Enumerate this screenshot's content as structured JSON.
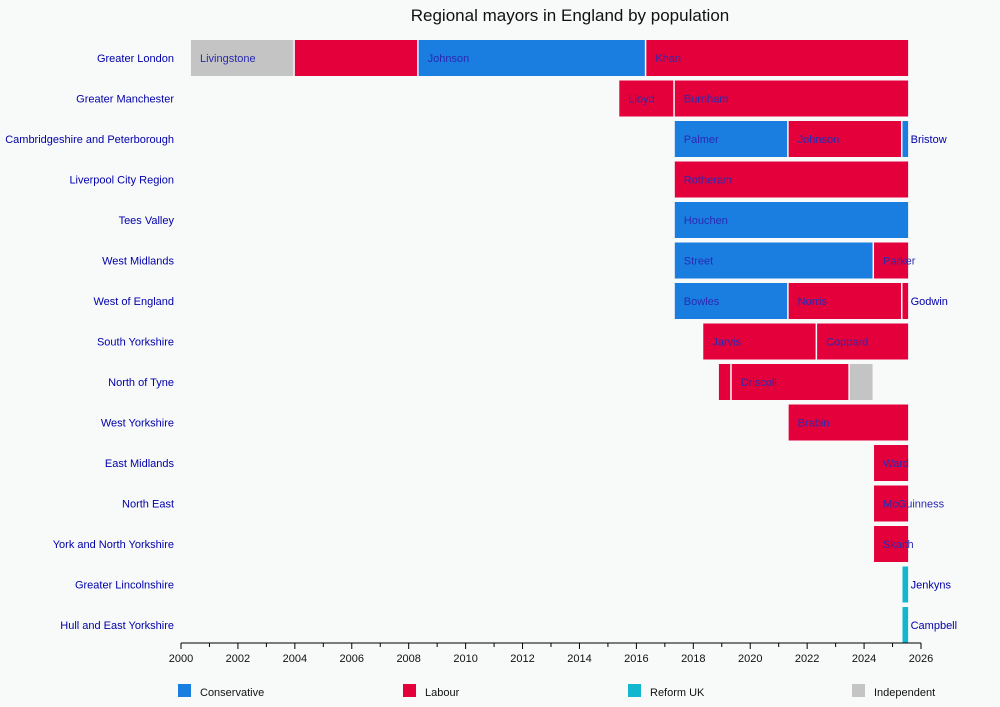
{
  "chart_data": {
    "type": "bar",
    "subtype": "timeline",
    "title": "Regional mayors in England by population",
    "xlim": [
      2000,
      2026
    ],
    "x_ticks": [
      2000,
      2002,
      2004,
      2006,
      2008,
      2010,
      2012,
      2014,
      2016,
      2018,
      2020,
      2022,
      2024,
      2026
    ],
    "grid": false,
    "legend_placement": "bottom",
    "parties": [
      {
        "name": "Conservative",
        "color": "#1a7ee0"
      },
      {
        "name": "Labour",
        "color": "#e4003b"
      },
      {
        "name": "Reform UK",
        "color": "#12b6cf"
      },
      {
        "name": "Independent",
        "color": "#c4c4c4"
      }
    ],
    "rows": [
      {
        "region": "Greater London",
        "terms": [
          {
            "label": "Livingstone",
            "party": "Independent",
            "start": 2000.35,
            "end": 2004.0
          },
          {
            "label": "",
            "party": "Labour",
            "start": 2004.0,
            "end": 2008.35
          },
          {
            "label": "Johnson",
            "party": "Conservative",
            "start": 2008.35,
            "end": 2016.35
          },
          {
            "label": "Khan",
            "party": "Labour",
            "start": 2016.35,
            "end": 2025.6
          }
        ]
      },
      {
        "region": "Greater Manchester",
        "terms": [
          {
            "label": "Lloyd",
            "party": "Labour",
            "start": 2015.4,
            "end": 2017.35
          },
          {
            "label": "Burnham",
            "party": "Labour",
            "start": 2017.35,
            "end": 2025.6
          }
        ]
      },
      {
        "region": "Cambridgeshire and Peterborough",
        "terms": [
          {
            "label": "Palmer",
            "party": "Conservative",
            "start": 2017.35,
            "end": 2021.35
          },
          {
            "label": "Johnson",
            "party": "Labour",
            "start": 2021.35,
            "end": 2025.35
          },
          {
            "label": "Bristow",
            "party": "Conservative",
            "start": 2025.35,
            "end": 2025.6
          }
        ]
      },
      {
        "region": "Liverpool City Region",
        "terms": [
          {
            "label": "Rotheram",
            "party": "Labour",
            "start": 2017.35,
            "end": 2025.6
          }
        ]
      },
      {
        "region": "Tees Valley",
        "terms": [
          {
            "label": "Houchen",
            "party": "Conservative",
            "start": 2017.35,
            "end": 2025.6
          }
        ]
      },
      {
        "region": "West Midlands",
        "terms": [
          {
            "label": "Street",
            "party": "Conservative",
            "start": 2017.35,
            "end": 2024.35
          },
          {
            "label": "Parker",
            "party": "Labour",
            "start": 2024.35,
            "end": 2025.6
          }
        ]
      },
      {
        "region": "West of England",
        "terms": [
          {
            "label": "Bowles",
            "party": "Conservative",
            "start": 2017.35,
            "end": 2021.35
          },
          {
            "label": "Norris",
            "party": "Labour",
            "start": 2021.35,
            "end": 2025.35
          },
          {
            "label": "Godwin",
            "party": "Labour",
            "start": 2025.35,
            "end": 2025.6
          }
        ]
      },
      {
        "region": "South Yorkshire",
        "terms": [
          {
            "label": "Jarvis",
            "party": "Labour",
            "start": 2018.35,
            "end": 2022.35
          },
          {
            "label": "Coppard",
            "party": "Labour",
            "start": 2022.35,
            "end": 2025.6
          }
        ]
      },
      {
        "region": "North of Tyne",
        "terms": [
          {
            "label": "",
            "party": "Labour",
            "start": 2018.9,
            "end": 2019.35
          },
          {
            "label": "Driscoll",
            "party": "Labour",
            "start": 2019.35,
            "end": 2023.5
          },
          {
            "label": "",
            "party": "Independent",
            "start": 2023.5,
            "end": 2024.35
          }
        ]
      },
      {
        "region": "West Yorkshire",
        "terms": [
          {
            "label": "Brabin",
            "party": "Labour",
            "start": 2021.35,
            "end": 2025.6
          }
        ]
      },
      {
        "region": "East Midlands",
        "terms": [
          {
            "label": "Ward",
            "party": "Labour",
            "start": 2024.35,
            "end": 2025.6
          }
        ]
      },
      {
        "region": "North East",
        "terms": [
          {
            "label": "McGuinness",
            "party": "Labour",
            "start": 2024.35,
            "end": 2025.6
          }
        ]
      },
      {
        "region": "York and North Yorkshire",
        "terms": [
          {
            "label": "Skaith",
            "party": "Labour",
            "start": 2024.35,
            "end": 2025.6
          }
        ]
      },
      {
        "region": "Greater Lincolnshire",
        "terms": [
          {
            "label": "Jenkyns",
            "party": "Reform UK",
            "start": 2025.35,
            "end": 2025.6
          }
        ]
      },
      {
        "region": "Hull and East Yorkshire",
        "terms": [
          {
            "label": "Campbell",
            "party": "Reform UK",
            "start": 2025.35,
            "end": 2025.6
          }
        ]
      }
    ]
  }
}
